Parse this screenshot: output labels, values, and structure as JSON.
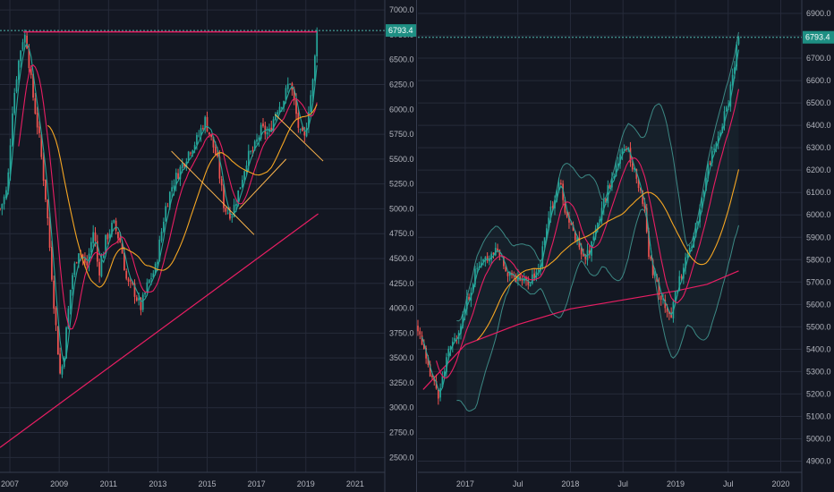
{
  "colors": {
    "background": "#131722",
    "grid": "#262b3a",
    "up": "#26a69a",
    "down": "#ef5350",
    "ma_fast": "#26a69a",
    "ma_mid": "#e91e63",
    "ma_slow": "#f5a623",
    "ma_long": "#e91e63",
    "bollinger": "#4db6ac",
    "resistance": "#e91e63",
    "trendline": "#ffb74d",
    "price_tag": "#1e8f83",
    "axis_text": "#b2b5be"
  },
  "chart_data": [
    {
      "type": "candlestick",
      "id": "left",
      "timeframe_note": "monthly candles",
      "last_price_label": "6793.4",
      "last_price": 6793.4,
      "ylim": [
        2350,
        7100
      ],
      "xlim": [
        2006.6,
        2022.2
      ],
      "y_ticks": [
        "2500.0",
        "2750.0",
        "3000.0",
        "3250.0",
        "3500.0",
        "3750.0",
        "4000.0",
        "4250.0",
        "4500.0",
        "4750.0",
        "5000.0",
        "5250.0",
        "5500.0",
        "5750.0",
        "6000.0",
        "6250.0",
        "6500.0",
        "6750.0",
        "7000.0"
      ],
      "x_ticks": [
        {
          "label": "2007",
          "x": 2007
        },
        {
          "label": "2009",
          "x": 2009
        },
        {
          "label": "2011",
          "x": 2011
        },
        {
          "label": "2013",
          "x": 2013
        },
        {
          "label": "2015",
          "x": 2015
        },
        {
          "label": "2017",
          "x": 2017
        },
        {
          "label": "2019",
          "x": 2019
        },
        {
          "label": "2021",
          "x": 2021
        }
      ],
      "anchors": [
        [
          2006.6,
          5000
        ],
        [
          2006.9,
          5200
        ],
        [
          2007.1,
          6000
        ],
        [
          2007.3,
          6400
        ],
        [
          2007.5,
          6700
        ],
        [
          2007.65,
          6750
        ],
        [
          2007.9,
          6200
        ],
        [
          2008.2,
          5700
        ],
        [
          2008.5,
          5000
        ],
        [
          2008.8,
          4000
        ],
        [
          2009.05,
          3300
        ],
        [
          2009.2,
          3550
        ],
        [
          2009.5,
          4300
        ],
        [
          2009.8,
          4600
        ],
        [
          2010.1,
          4400
        ],
        [
          2010.4,
          4800
        ],
        [
          2010.6,
          4350
        ],
        [
          2010.9,
          4700
        ],
        [
          2011.2,
          4850
        ],
        [
          2011.5,
          4650
        ],
        [
          2011.75,
          4250
        ],
        [
          2012.0,
          4200
        ],
        [
          2012.3,
          4000
        ],
        [
          2012.6,
          4250
        ],
        [
          2012.9,
          4400
        ],
        [
          2013.3,
          5000
        ],
        [
          2013.6,
          5250
        ],
        [
          2013.9,
          5400
        ],
        [
          2014.3,
          5600
        ],
        [
          2014.6,
          5700
        ],
        [
          2014.9,
          5900
        ],
        [
          2015.1,
          5750
        ],
        [
          2015.4,
          5500
        ],
        [
          2015.7,
          5000
        ],
        [
          2016.0,
          4950
        ],
        [
          2016.3,
          5200
        ],
        [
          2016.6,
          5500
        ],
        [
          2016.9,
          5600
        ],
        [
          2017.2,
          5800
        ],
        [
          2017.5,
          5750
        ],
        [
          2017.8,
          6000
        ],
        [
          2018.1,
          6100
        ],
        [
          2018.35,
          6300
        ],
        [
          2018.5,
          6100
        ],
        [
          2018.75,
          5750
        ],
        [
          2018.95,
          5700
        ],
        [
          2019.1,
          6000
        ],
        [
          2019.3,
          6300
        ],
        [
          2019.45,
          6793.4
        ]
      ],
      "moving_averages": [
        {
          "kind": "ma_fast",
          "window": 4
        },
        {
          "kind": "ma_mid",
          "window": 10
        },
        {
          "kind": "ma_slow",
          "window": 24
        },
        {
          "kind": "ma_long_linear",
          "from": [
            2006.6,
            2600
          ],
          "to": [
            2019.5,
            4950
          ]
        }
      ],
      "resistance": {
        "x1": 2007.55,
        "x2": 2019.45,
        "y": 6780
      },
      "trendlines": [
        {
          "from": [
            2013.55,
            5580
          ],
          "to": [
            2016.9,
            4740
          ]
        },
        {
          "from": [
            2016.3,
            5000
          ],
          "to": [
            2018.2,
            5500
          ]
        },
        {
          "from": [
            2017.75,
            5950
          ],
          "to": [
            2019.7,
            5480
          ]
        }
      ]
    },
    {
      "type": "candlestick",
      "id": "right",
      "timeframe_note": "weekly candles",
      "last_price_label": "6793.4",
      "last_price": 6793.4,
      "ylim": [
        4850,
        6960
      ],
      "xlim": [
        2016.55,
        2020.2
      ],
      "y_ticks": [
        "4900.0",
        "5000.0",
        "5100.0",
        "5200.0",
        "5300.0",
        "5400.0",
        "5500.0",
        "5600.0",
        "5700.0",
        "5800.0",
        "5900.0",
        "6000.0",
        "6100.0",
        "6200.0",
        "6300.0",
        "6400.0",
        "6500.0",
        "6600.0",
        "6700.0",
        "6800.0",
        "6900.0"
      ],
      "x_ticks": [
        {
          "label": "2017",
          "x": 2017.0
        },
        {
          "label": "Jul",
          "x": 2017.5
        },
        {
          "label": "2018",
          "x": 2018.0
        },
        {
          "label": "Jul",
          "x": 2018.5
        },
        {
          "label": "2019",
          "x": 2019.0
        },
        {
          "label": "Jul",
          "x": 2019.5
        },
        {
          "label": "2020",
          "x": 2020.0
        }
      ],
      "anchors": [
        [
          2016.55,
          5500
        ],
        [
          2016.65,
          5300
        ],
        [
          2016.75,
          5200
        ],
        [
          2016.85,
          5400
        ],
        [
          2016.95,
          5500
        ],
        [
          2017.1,
          5750
        ],
        [
          2017.2,
          5800
        ],
        [
          2017.3,
          5850
        ],
        [
          2017.4,
          5750
        ],
        [
          2017.5,
          5720
        ],
        [
          2017.6,
          5700
        ],
        [
          2017.7,
          5750
        ],
        [
          2017.8,
          6000
        ],
        [
          2017.9,
          6150
        ],
        [
          2017.95,
          6000
        ],
        [
          2018.05,
          5900
        ],
        [
          2018.15,
          5800
        ],
        [
          2018.25,
          5950
        ],
        [
          2018.35,
          6100
        ],
        [
          2018.45,
          6250
        ],
        [
          2018.55,
          6300
        ],
        [
          2018.6,
          6200
        ],
        [
          2018.7,
          6050
        ],
        [
          2018.75,
          5800
        ],
        [
          2018.85,
          5650
        ],
        [
          2018.95,
          5550
        ],
        [
          2019.0,
          5650
        ],
        [
          2019.1,
          5800
        ],
        [
          2019.2,
          5950
        ],
        [
          2019.3,
          6200
        ],
        [
          2019.4,
          6350
        ],
        [
          2019.5,
          6500
        ],
        [
          2019.55,
          6650
        ],
        [
          2019.6,
          6793.4
        ]
      ],
      "moving_averages": [
        {
          "kind": "ma_fast",
          "window": 3
        },
        {
          "kind": "ma_mid",
          "window": 10
        },
        {
          "kind": "ma_slow",
          "window": 30
        }
      ],
      "ma_long_points": [
        [
          2016.6,
          5220
        ],
        [
          2017.0,
          5420
        ],
        [
          2017.5,
          5510
        ],
        [
          2018.0,
          5580
        ],
        [
          2018.5,
          5620
        ],
        [
          2019.0,
          5660
        ],
        [
          2019.3,
          5690
        ],
        [
          2019.6,
          5750
        ]
      ],
      "bollinger": {
        "window": 20,
        "k": 2
      }
    }
  ]
}
